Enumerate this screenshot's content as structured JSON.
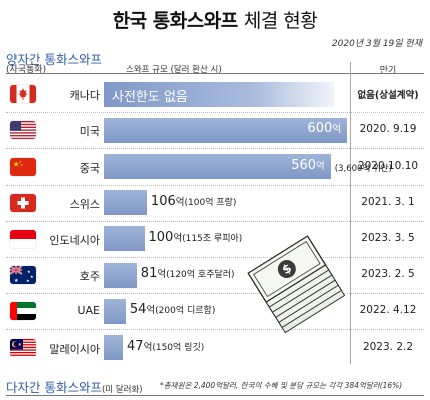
{
  "title_bold": "한국 통화스와프",
  "title_light": "체결 현황",
  "date": "2020년 3월 19일 현재",
  "section1": {
    "title": "양자간 통화스와프",
    "subtitle": "(자국통화)",
    "scale_header": "스와프 규모 (달러 환산 시)",
    "maturity_header": "만기"
  },
  "section2": {
    "title": "다자간 통화스와프",
    "subtitle": "(미 달러화)"
  },
  "footnote": "*총재원은 2,400억달러, 한국의 수혜 및 분담 규모는 각각 384억달러(16%)",
  "chart_data": {
    "type": "bar",
    "title": "한국 통화스와프 체결 현황",
    "unit": "억 달러",
    "categories": [
      "캐나다",
      "미국",
      "중국",
      "스위스",
      "인도네시아",
      "호주",
      "UAE",
      "말레이시아"
    ],
    "values": [
      null,
      600,
      560,
      106,
      100,
      81,
      54,
      47
    ],
    "value_labels": [
      "사전한도 없음",
      "600",
      "560",
      "106",
      "100",
      "81",
      "54",
      "47"
    ],
    "value_unit": "억",
    "local_currency_notes": [
      "",
      "",
      "(3,600억 위안)",
      "(100억 프랑)",
      "(115조 루피아)",
      "(120억 호주달러)",
      "(200억 디르함)",
      "(150억 링깃)"
    ],
    "maturity": [
      "없음(상설계약)",
      "2020. 9.19",
      "2020.10.10",
      "2021. 3. 1",
      "2023. 3. 5",
      "2023. 2. 5",
      "2022. 4.12",
      "2023. 2.2"
    ],
    "flags": [
      "canada-flag",
      "usa-flag",
      "china-flag",
      "switzerland-flag",
      "indonesia-flag",
      "australia-flag",
      "uae-flag",
      "malaysia-flag"
    ]
  }
}
